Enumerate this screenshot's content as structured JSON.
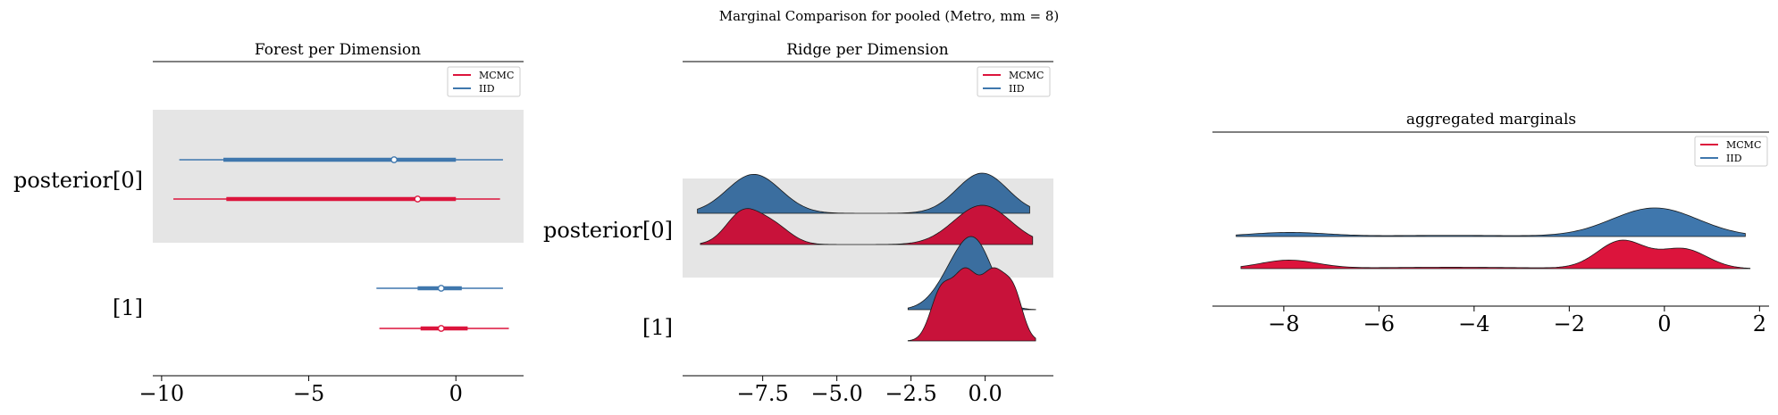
{
  "suptitle": "Marginal Comparison for pooled (Metro, mm = 8)",
  "colors": {
    "mcmc": "#dc143c",
    "mcmc_dark": "#c8123a",
    "iid": "#3f77ad",
    "iid_dark": "#3b6e9f",
    "band": "#e5e5e5"
  },
  "chart_data": [
    {
      "type": "forest",
      "title": "Forest per Dimension",
      "xlim": [
        -10.3,
        2.3
      ],
      "xticks": [
        -10,
        -5,
        0
      ],
      "xtick_labels": [
        "−10",
        "−5",
        "0"
      ],
      "ytick_labels": [
        "posterior[0]",
        "[1]"
      ],
      "legend": {
        "position": "top-right",
        "entries": [
          "MCMC",
          "IID"
        ]
      },
      "rows": [
        {
          "dimension": "posterior[0]",
          "series": "IID",
          "hdi_low": -9.4,
          "hdi_high": 1.6,
          "iqr_low": -7.9,
          "iqr_high": 0.0,
          "median": -2.1
        },
        {
          "dimension": "posterior[0]",
          "series": "MCMC",
          "hdi_low": -9.6,
          "hdi_high": 1.5,
          "iqr_low": -7.8,
          "iqr_high": 0.0,
          "median": -1.3
        },
        {
          "dimension": "[1]",
          "series": "IID",
          "hdi_low": -2.7,
          "hdi_high": 1.6,
          "iqr_low": -1.3,
          "iqr_high": 0.2,
          "median": -0.5
        },
        {
          "dimension": "[1]",
          "series": "MCMC",
          "hdi_low": -2.6,
          "hdi_high": 1.8,
          "iqr_low": -1.2,
          "iqr_high": 0.4,
          "median": -0.5
        }
      ]
    },
    {
      "type": "ridge",
      "title": "Ridge per Dimension",
      "xlim": [
        -10.2,
        2.3
      ],
      "xticks": [
        -7.5,
        -5.0,
        -2.5,
        0.0
      ],
      "xtick_labels": [
        "−7.5",
        "−5.0",
        "−2.5",
        "0.0"
      ],
      "ytick_labels": [
        "posterior[0]",
        "[1]"
      ],
      "legend": {
        "position": "top-right",
        "entries": [
          "MCMC",
          "IID"
        ]
      },
      "ridges": [
        {
          "dimension": "posterior[0]",
          "series": "IID",
          "x_range": [
            -9.7,
            1.5
          ],
          "modes": [
            {
              "mu": -7.8,
              "sigma": 0.9,
              "weight": 0.97
            },
            {
              "mu": -0.1,
              "sigma": 0.85,
              "weight": 1.0
            }
          ]
        },
        {
          "dimension": "posterior[0]",
          "series": "MCMC",
          "x_range": [
            -9.6,
            1.6
          ],
          "modes": [
            {
              "mu": -8.2,
              "sigma": 0.55,
              "weight": 0.76
            },
            {
              "mu": -7.2,
              "sigma": 0.6,
              "weight": 0.5
            },
            {
              "mu": -0.1,
              "sigma": 0.95,
              "weight": 1.0
            }
          ]
        },
        {
          "dimension": "[1]",
          "series": "IID",
          "x_range": [
            -2.6,
            1.7
          ],
          "modes": [
            {
              "mu": -0.8,
              "sigma": 0.7,
              "weight": 0.75
            },
            {
              "mu": -0.2,
              "sigma": 0.55,
              "weight": 0.55
            }
          ]
        },
        {
          "dimension": "[1]",
          "series": "MCMC",
          "x_range": [
            -2.6,
            1.7
          ],
          "modes": [
            {
              "mu": -1.5,
              "sigma": 0.35,
              "weight": 0.55
            },
            {
              "mu": -0.7,
              "sigma": 0.4,
              "weight": 0.75
            },
            {
              "mu": 0.3,
              "sigma": 0.45,
              "weight": 0.8
            },
            {
              "mu": 1.0,
              "sigma": 0.3,
              "weight": 0.4
            }
          ]
        }
      ]
    },
    {
      "type": "ridge",
      "title": "aggregated marginals",
      "xlim": [
        -9.5,
        2.2
      ],
      "xticks": [
        -8,
        -6,
        -4,
        -2,
        0,
        2
      ],
      "xtick_labels": [
        "−8",
        "−6",
        "−4",
        "−2",
        "0",
        "2"
      ],
      "legend": {
        "position": "top-right",
        "entries": [
          "MCMC",
          "IID"
        ]
      },
      "ridges": [
        {
          "series": "IID",
          "x_range": [
            -9.0,
            1.7
          ],
          "modes": [
            {
              "mu": -7.9,
              "sigma": 0.8,
              "weight": 0.14
            },
            {
              "mu": -4.5,
              "sigma": 1.5,
              "weight": 0.04
            },
            {
              "mu": -0.2,
              "sigma": 0.9,
              "weight": 1.0
            }
          ]
        },
        {
          "series": "MCMC",
          "x_range": [
            -8.9,
            1.8
          ],
          "modes": [
            {
              "mu": -7.9,
              "sigma": 0.6,
              "weight": 0.3
            },
            {
              "mu": -4.5,
              "sigma": 1.8,
              "weight": 0.05
            },
            {
              "mu": -0.9,
              "sigma": 0.5,
              "weight": 1.0
            },
            {
              "mu": 0.4,
              "sigma": 0.5,
              "weight": 0.7
            }
          ]
        }
      ]
    }
  ]
}
